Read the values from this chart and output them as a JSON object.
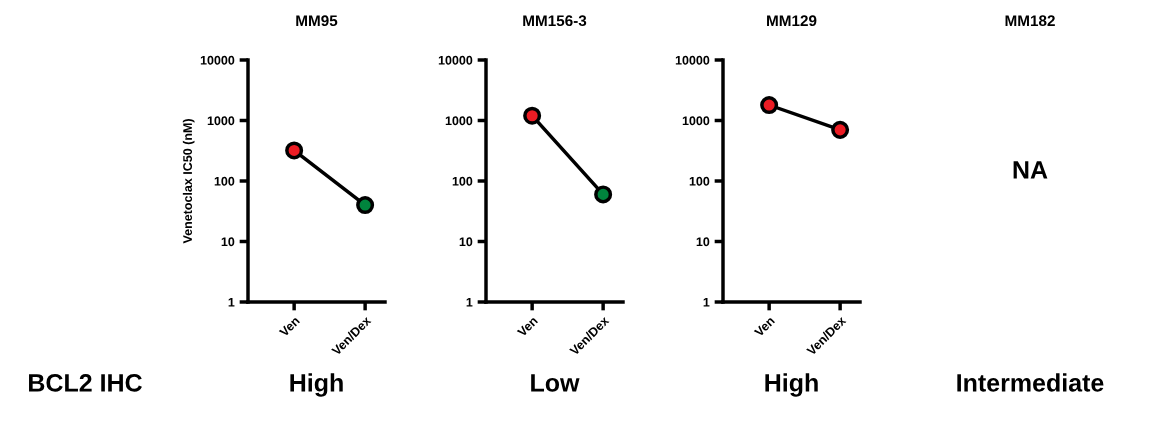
{
  "chart_data": [
    {
      "type": "line",
      "title": "MM95",
      "ylabel": "Venetoclax IC50 (nM)",
      "categories": [
        "Ven",
        "Ven/Dex"
      ],
      "log": true,
      "ylim": [
        1,
        10000
      ],
      "yticks": [
        1,
        10,
        100,
        1000,
        10000
      ],
      "grid": false,
      "marker": "circle",
      "line_style": "solid",
      "series": [
        {
          "color": "#000000",
          "colors": [
            "#ed1c24",
            "#00843d"
          ],
          "values": [
            320,
            40
          ]
        }
      ],
      "annotations": [
        "BCL2 IHC",
        "High"
      ]
    },
    {
      "type": "line",
      "title": "MM156-3",
      "categories": [
        "Ven",
        "Ven/Dex"
      ],
      "log": true,
      "ylim": [
        1,
        10000
      ],
      "yticks": [
        1,
        10,
        100,
        1000,
        10000
      ],
      "grid": false,
      "marker": "circle",
      "line_style": "solid",
      "series": [
        {
          "color": "#000000",
          "colors": [
            "#ed1c24",
            "#00843d"
          ],
          "values": [
            1200,
            60
          ]
        }
      ],
      "annotations": [
        "Low"
      ]
    },
    {
      "type": "line",
      "title": "MM129",
      "categories": [
        "Ven",
        "Ven/Dex"
      ],
      "log": true,
      "ylim": [
        1,
        10000
      ],
      "yticks": [
        1,
        10,
        100,
        1000,
        10000
      ],
      "grid": false,
      "marker": "circle",
      "line_style": "solid",
      "series": [
        {
          "color": "#000000",
          "colors": [
            "#ed1c24",
            "#ed1c24"
          ],
          "values": [
            1800,
            700
          ]
        }
      ],
      "annotations": [
        "High"
      ]
    },
    {
      "type": "other",
      "title": "MM182",
      "annotations": [
        "NA",
        "Intermediate"
      ]
    }
  ]
}
